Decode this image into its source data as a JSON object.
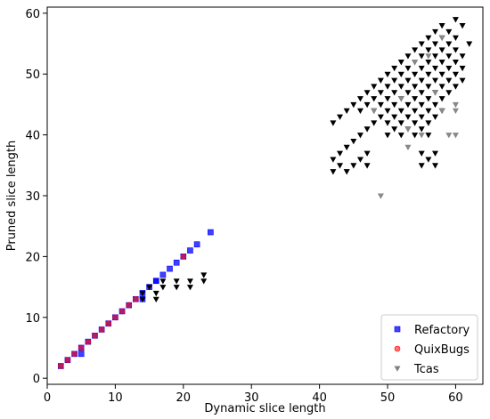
{
  "chart_data": {
    "type": "scatter",
    "xlabel": "Dynamic slice length",
    "ylabel": "Pruned slice length",
    "xlim": [
      0,
      64
    ],
    "ylim": [
      -1,
      61
    ],
    "xticks": [
      0,
      10,
      20,
      30,
      40,
      50,
      60
    ],
    "yticks": [
      0,
      10,
      20,
      30,
      40,
      50,
      60
    ],
    "grid": false,
    "legend_position": "bottom-right",
    "series": [
      {
        "name": "Refactory",
        "marker": "square",
        "color": "#0000ff",
        "points": [
          [
            2,
            2
          ],
          [
            3,
            3
          ],
          [
            4,
            4
          ],
          [
            5,
            4
          ],
          [
            5,
            5
          ],
          [
            6,
            6
          ],
          [
            7,
            7
          ],
          [
            8,
            8
          ],
          [
            9,
            9
          ],
          [
            10,
            10
          ],
          [
            11,
            11
          ],
          [
            12,
            12
          ],
          [
            13,
            13
          ],
          [
            14,
            14
          ],
          [
            15,
            15
          ],
          [
            16,
            16
          ],
          [
            17,
            17
          ],
          [
            18,
            18
          ],
          [
            19,
            19
          ],
          [
            20,
            20
          ],
          [
            21,
            21
          ],
          [
            22,
            22
          ],
          [
            24,
            24
          ],
          [
            14,
            13
          ],
          [
            16,
            16
          ]
        ]
      },
      {
        "name": "QuixBugs",
        "marker": "circle",
        "color": "#ff0000",
        "points": [
          [
            2,
            2
          ],
          [
            3,
            3
          ],
          [
            4,
            4
          ],
          [
            5,
            5
          ],
          [
            6,
            6
          ],
          [
            7,
            7
          ],
          [
            8,
            8
          ],
          [
            9,
            9
          ],
          [
            10,
            10
          ],
          [
            11,
            11
          ],
          [
            12,
            12
          ],
          [
            13,
            13
          ],
          [
            20,
            20
          ]
        ]
      },
      {
        "name": "Tcas",
        "marker": "triangle-down",
        "color": "#000000",
        "points": [
          [
            14,
            13
          ],
          [
            14,
            14
          ],
          [
            15,
            15
          ],
          [
            16,
            13
          ],
          [
            16,
            14
          ],
          [
            17,
            15
          ],
          [
            17,
            16
          ],
          [
            19,
            15
          ],
          [
            19,
            16
          ],
          [
            21,
            15
          ],
          [
            21,
            16
          ],
          [
            23,
            16
          ],
          [
            23,
            17
          ],
          [
            42,
            34
          ],
          [
            42,
            36
          ],
          [
            42,
            42
          ],
          [
            43,
            35
          ],
          [
            43,
            37
          ],
          [
            43,
            43
          ],
          [
            44,
            34
          ],
          [
            44,
            38
          ],
          [
            44,
            44
          ],
          [
            45,
            35
          ],
          [
            45,
            39
          ],
          [
            45,
            45
          ],
          [
            46,
            36
          ],
          [
            46,
            40
          ],
          [
            46,
            44
          ],
          [
            46,
            46
          ],
          [
            47,
            35
          ],
          [
            47,
            37
          ],
          [
            47,
            41
          ],
          [
            47,
            45
          ],
          [
            47,
            47
          ],
          [
            48,
            42
          ],
          [
            48,
            44
          ],
          [
            48,
            46
          ],
          [
            48,
            48
          ],
          [
            49,
            43
          ],
          [
            49,
            45
          ],
          [
            49,
            47
          ],
          [
            49,
            49
          ],
          [
            50,
            40
          ],
          [
            50,
            42
          ],
          [
            50,
            44
          ],
          [
            50,
            46
          ],
          [
            50,
            48
          ],
          [
            50,
            50
          ],
          [
            51,
            41
          ],
          [
            51,
            43
          ],
          [
            51,
            45
          ],
          [
            51,
            47
          ],
          [
            51,
            49
          ],
          [
            51,
            51
          ],
          [
            52,
            40
          ],
          [
            52,
            42
          ],
          [
            52,
            44
          ],
          [
            52,
            46
          ],
          [
            52,
            48
          ],
          [
            52,
            50
          ],
          [
            52,
            52
          ],
          [
            53,
            41
          ],
          [
            53,
            43
          ],
          [
            53,
            45
          ],
          [
            53,
            47
          ],
          [
            53,
            49
          ],
          [
            53,
            51
          ],
          [
            53,
            53
          ],
          [
            54,
            40
          ],
          [
            54,
            42
          ],
          [
            54,
            44
          ],
          [
            54,
            46
          ],
          [
            54,
            48
          ],
          [
            54,
            50
          ],
          [
            54,
            52
          ],
          [
            54,
            54
          ],
          [
            55,
            35
          ],
          [
            55,
            37
          ],
          [
            55,
            41
          ],
          [
            55,
            43
          ],
          [
            55,
            45
          ],
          [
            55,
            47
          ],
          [
            55,
            49
          ],
          [
            55,
            51
          ],
          [
            55,
            53
          ],
          [
            55,
            55
          ],
          [
            56,
            36
          ],
          [
            56,
            40
          ],
          [
            56,
            42
          ],
          [
            56,
            44
          ],
          [
            56,
            46
          ],
          [
            56,
            48
          ],
          [
            56,
            50
          ],
          [
            56,
            52
          ],
          [
            56,
            54
          ],
          [
            56,
            56
          ],
          [
            57,
            35
          ],
          [
            57,
            37
          ],
          [
            57,
            43
          ],
          [
            57,
            45
          ],
          [
            57,
            47
          ],
          [
            57,
            49
          ],
          [
            57,
            51
          ],
          [
            57,
            53
          ],
          [
            57,
            55
          ],
          [
            57,
            57
          ],
          [
            58,
            44
          ],
          [
            58,
            46
          ],
          [
            58,
            48
          ],
          [
            58,
            50
          ],
          [
            58,
            52
          ],
          [
            58,
            54
          ],
          [
            58,
            56
          ],
          [
            58,
            58
          ],
          [
            59,
            47
          ],
          [
            59,
            49
          ],
          [
            59,
            51
          ],
          [
            59,
            53
          ],
          [
            59,
            55
          ],
          [
            59,
            57
          ],
          [
            60,
            48
          ],
          [
            60,
            50
          ],
          [
            60,
            52
          ],
          [
            60,
            54
          ],
          [
            60,
            56
          ],
          [
            60,
            59
          ],
          [
            61,
            49
          ],
          [
            61,
            51
          ],
          [
            61,
            53
          ],
          [
            61,
            58
          ],
          [
            62,
            55
          ]
        ]
      },
      {
        "name": "",
        "marker": "triangle-down",
        "color": "#888888",
        "points": [
          [
            49,
            30
          ],
          [
            53,
            41
          ],
          [
            54,
            52
          ],
          [
            55,
            40
          ],
          [
            57,
            47
          ],
          [
            58,
            44
          ],
          [
            58,
            56
          ],
          [
            59,
            40
          ],
          [
            60,
            40
          ],
          [
            60,
            44
          ],
          [
            60,
            45
          ],
          [
            48,
            44
          ],
          [
            53,
            38
          ],
          [
            56,
            53
          ],
          [
            52,
            46
          ]
        ]
      }
    ]
  }
}
